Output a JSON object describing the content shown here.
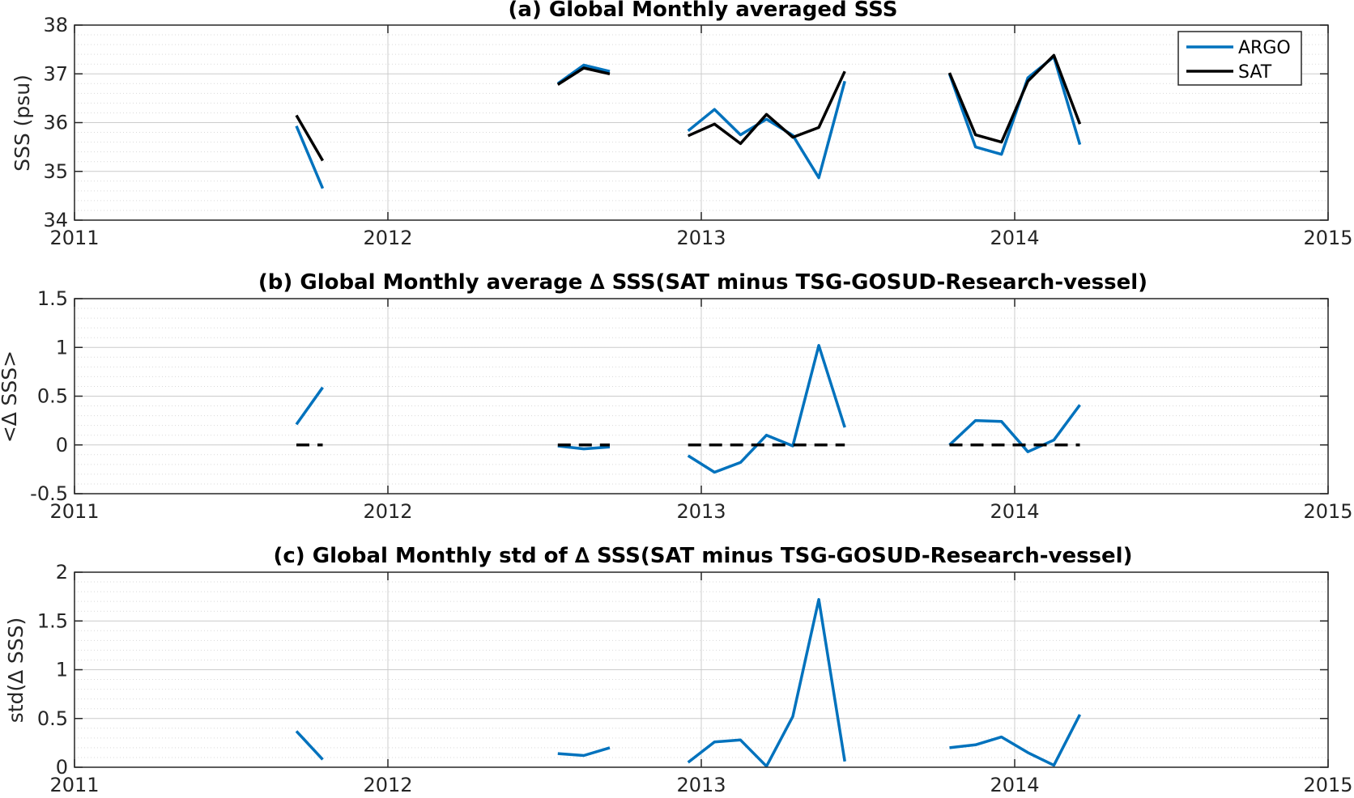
{
  "colors": {
    "argo": "#0072BD",
    "sat": "#000000",
    "grid": "#cccccc",
    "axes": "#262626"
  },
  "chart_data": [
    {
      "type": "line",
      "title": "(a) Global Monthly averaged SSS",
      "xlabel": "",
      "ylabel": "SSS (psu)",
      "xlim": [
        2011,
        2015
      ],
      "ylim": [
        34,
        38
      ],
      "xticks": [
        "2011",
        "2012",
        "2013",
        "2014",
        "2015"
      ],
      "yticks": [
        "34",
        "35",
        "36",
        "37",
        "38"
      ],
      "grid": true,
      "legend": {
        "placement": "top-right",
        "entries": [
          "ARGO",
          "SAT"
        ]
      },
      "series": [
        {
          "name": "ARGO",
          "color": "#0072BD",
          "segments": [
            [
              [
                2011.708,
                35.93
              ],
              [
                2011.792,
                34.65
              ]
            ],
            [
              [
                2012.542,
                36.8
              ],
              [
                2012.625,
                37.18
              ],
              [
                2012.708,
                37.05
              ]
            ],
            [
              [
                2012.958,
                35.83
              ],
              [
                2013.042,
                36.27
              ],
              [
                2013.125,
                35.75
              ],
              [
                2013.208,
                36.07
              ],
              [
                2013.292,
                35.74
              ],
              [
                2013.375,
                34.87
              ],
              [
                2013.458,
                36.85
              ]
            ],
            [
              [
                2013.792,
                37.0
              ],
              [
                2013.875,
                35.5
              ],
              [
                2013.958,
                35.35
              ],
              [
                2014.042,
                36.92
              ],
              [
                2014.125,
                37.35
              ],
              [
                2014.208,
                35.55
              ]
            ]
          ]
        },
        {
          "name": "SAT",
          "color": "#000000",
          "segments": [
            [
              [
                2011.708,
                36.15
              ],
              [
                2011.792,
                35.22
              ]
            ],
            [
              [
                2012.542,
                36.78
              ],
              [
                2012.625,
                37.12
              ],
              [
                2012.708,
                37.0
              ]
            ],
            [
              [
                2012.958,
                35.73
              ],
              [
                2013.042,
                35.97
              ],
              [
                2013.125,
                35.57
              ],
              [
                2013.208,
                36.17
              ],
              [
                2013.292,
                35.7
              ],
              [
                2013.375,
                35.9
              ],
              [
                2013.458,
                37.05
              ]
            ],
            [
              [
                2013.792,
                37.02
              ],
              [
                2013.875,
                35.75
              ],
              [
                2013.958,
                35.6
              ],
              [
                2014.042,
                36.85
              ],
              [
                2014.125,
                37.38
              ],
              [
                2014.208,
                35.97
              ]
            ]
          ]
        }
      ]
    },
    {
      "type": "line",
      "title": "(b) Global Monthly average ∆ SSS(SAT minus TSG-GOSUD-Research-vessel)",
      "xlabel": "",
      "ylabel": "<∆ SSS>",
      "xlim": [
        2011,
        2015
      ],
      "ylim": [
        -0.5,
        1.5
      ],
      "xticks": [
        "2011",
        "2012",
        "2013",
        "2014",
        "2015"
      ],
      "yticks": [
        "-0.5",
        "0",
        "0.5",
        "1",
        "1.5"
      ],
      "grid": true,
      "series": [
        {
          "color": "#0072BD",
          "segments": [
            [
              [
                2011.708,
                0.21
              ],
              [
                2011.792,
                0.59
              ]
            ],
            [
              [
                2012.542,
                -0.01
              ],
              [
                2012.625,
                -0.04
              ],
              [
                2012.708,
                -0.02
              ]
            ],
            [
              [
                2012.958,
                -0.11
              ],
              [
                2013.042,
                -0.28
              ],
              [
                2013.125,
                -0.18
              ],
              [
                2013.208,
                0.1
              ],
              [
                2013.292,
                -0.01
              ],
              [
                2013.375,
                1.02
              ],
              [
                2013.458,
                0.18
              ]
            ],
            [
              [
                2013.792,
                0.0
              ],
              [
                2013.875,
                0.25
              ],
              [
                2013.958,
                0.24
              ],
              [
                2014.042,
                -0.07
              ],
              [
                2014.125,
                0.05
              ],
              [
                2014.208,
                0.41
              ]
            ]
          ]
        },
        {
          "color": "#000000",
          "dashed": true,
          "segments": [
            [
              [
                2011.708,
                0
              ],
              [
                2011.792,
                0
              ]
            ],
            [
              [
                2012.542,
                0
              ],
              [
                2012.708,
                0
              ]
            ],
            [
              [
                2012.958,
                0
              ],
              [
                2013.458,
                0
              ]
            ],
            [
              [
                2013.792,
                0
              ],
              [
                2014.208,
                0
              ]
            ]
          ]
        }
      ]
    },
    {
      "type": "line",
      "title": "(c) Global Monthly std of ∆ SSS(SAT minus TSG-GOSUD-Research-vessel)",
      "xlabel": "",
      "ylabel": "std(∆ SSS)",
      "xlim": [
        2011,
        2015
      ],
      "ylim": [
        0,
        2
      ],
      "xticks": [
        "2011",
        "2012",
        "2013",
        "2014",
        "2015"
      ],
      "yticks": [
        "0",
        "0.5",
        "1",
        "1.5",
        "2"
      ],
      "grid": true,
      "series": [
        {
          "color": "#0072BD",
          "segments": [
            [
              [
                2011.708,
                0.37
              ],
              [
                2011.792,
                0.08
              ]
            ],
            [
              [
                2012.542,
                0.14
              ],
              [
                2012.625,
                0.12
              ],
              [
                2012.708,
                0.2
              ]
            ],
            [
              [
                2012.958,
                0.05
              ],
              [
                2013.042,
                0.26
              ],
              [
                2013.125,
                0.28
              ],
              [
                2013.208,
                0.01
              ],
              [
                2013.292,
                0.52
              ],
              [
                2013.375,
                1.72
              ],
              [
                2013.458,
                0.06
              ]
            ],
            [
              [
                2013.792,
                0.2
              ],
              [
                2013.875,
                0.23
              ],
              [
                2013.958,
                0.31
              ],
              [
                2014.042,
                0.15
              ],
              [
                2014.125,
                0.02
              ],
              [
                2014.208,
                0.54
              ]
            ]
          ]
        }
      ]
    }
  ]
}
